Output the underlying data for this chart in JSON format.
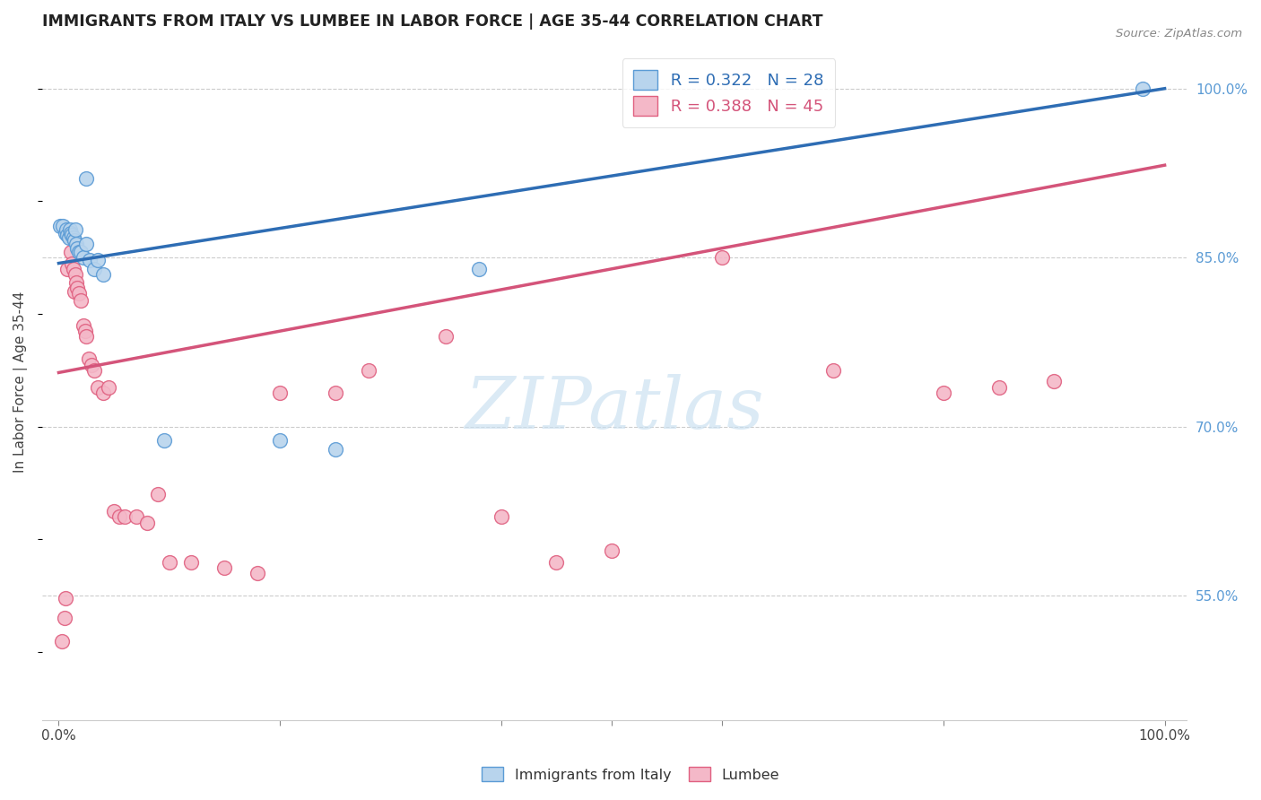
{
  "title": "IMMIGRANTS FROM ITALY VS LUMBEE IN LABOR FORCE | AGE 35-44 CORRELATION CHART",
  "source": "Source: ZipAtlas.com",
  "ylabel": "In Labor Force | Age 35-44",
  "italy_color": "#b8d4ed",
  "italy_edge_color": "#5b9bd5",
  "lumbee_color": "#f4b8c8",
  "lumbee_edge_color": "#e06080",
  "italy_line_color": "#2e6db4",
  "lumbee_line_color": "#d4547a",
  "legend_italy_R": "R = 0.322",
  "legend_italy_N": "N = 28",
  "legend_lumbee_R": "R = 0.388",
  "legend_lumbee_N": "N = 45",
  "watermark_text": "ZIPatlas",
  "italy_x": [
    0.001,
    0.004,
    0.006,
    0.007,
    0.008,
    0.009,
    0.01,
    0.011,
    0.012,
    0.013,
    0.014,
    0.015,
    0.016,
    0.017,
    0.018,
    0.02,
    0.022,
    0.025,
    0.028,
    0.032,
    0.035,
    0.04,
    0.095,
    0.2,
    0.25,
    0.38,
    0.98,
    0.025
  ],
  "italy_y": [
    0.878,
    0.878,
    0.872,
    0.875,
    0.87,
    0.868,
    0.875,
    0.872,
    0.87,
    0.868,
    0.865,
    0.875,
    0.862,
    0.858,
    0.855,
    0.855,
    0.85,
    0.92,
    0.848,
    0.84,
    0.848,
    0.835,
    0.688,
    0.688,
    0.68,
    0.84,
    1.0,
    0.862
  ],
  "lumbee_x": [
    0.003,
    0.005,
    0.006,
    0.008,
    0.01,
    0.011,
    0.012,
    0.013,
    0.014,
    0.015,
    0.016,
    0.017,
    0.018,
    0.02,
    0.022,
    0.024,
    0.025,
    0.027,
    0.03,
    0.032,
    0.035,
    0.04,
    0.045,
    0.05,
    0.055,
    0.06,
    0.07,
    0.08,
    0.09,
    0.1,
    0.12,
    0.15,
    0.18,
    0.2,
    0.25,
    0.28,
    0.35,
    0.4,
    0.45,
    0.5,
    0.6,
    0.7,
    0.8,
    0.85,
    0.9
  ],
  "lumbee_y": [
    0.51,
    0.53,
    0.548,
    0.84,
    0.87,
    0.855,
    0.845,
    0.84,
    0.82,
    0.835,
    0.828,
    0.823,
    0.818,
    0.812,
    0.79,
    0.785,
    0.78,
    0.76,
    0.755,
    0.75,
    0.735,
    0.73,
    0.735,
    0.625,
    0.62,
    0.62,
    0.62,
    0.615,
    0.64,
    0.58,
    0.58,
    0.575,
    0.57,
    0.73,
    0.73,
    0.75,
    0.78,
    0.62,
    0.58,
    0.59,
    0.85,
    0.75,
    0.73,
    0.735,
    0.74
  ],
  "italy_line_x0": 0.0,
  "italy_line_y0": 0.845,
  "italy_line_x1": 1.0,
  "italy_line_y1": 1.0,
  "lumbee_line_x0": 0.0,
  "lumbee_line_y0": 0.748,
  "lumbee_line_x1": 1.0,
  "lumbee_line_y1": 0.932,
  "ylim_min": 0.44,
  "ylim_max": 1.04,
  "xlim_min": -0.015,
  "xlim_max": 1.02,
  "ytick_vals": [
    0.55,
    0.7,
    0.85,
    1.0
  ],
  "ytick_labels": [
    "55.0%",
    "70.0%",
    "85.0%",
    "100.0%"
  ],
  "xtick_vals": [
    0.0,
    0.2,
    0.4,
    0.5,
    0.6,
    0.8,
    1.0
  ],
  "grid_color": "#cccccc",
  "right_tick_color": "#5b9bd5"
}
